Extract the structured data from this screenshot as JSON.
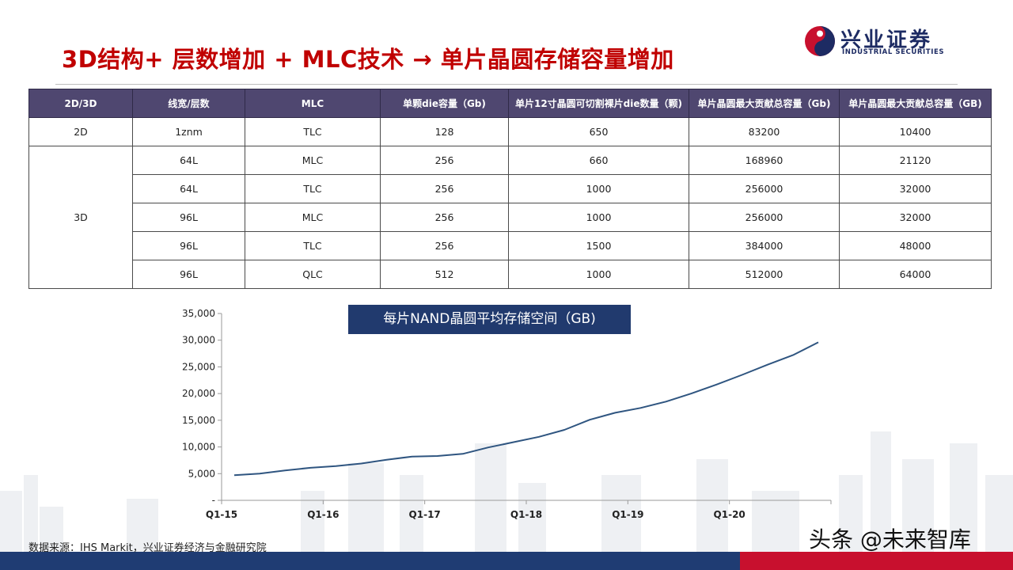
{
  "title": "3D结构+ 层数增加 + MLC技术 → 单片晶圆存储容量增加",
  "logo": {
    "name": "兴业证券",
    "english": "INDUSTRIAL SECURITIES"
  },
  "table": {
    "headers": [
      "2D/3D",
      "线宽/层数",
      "MLC",
      "单颗die容量（Gb)",
      "单片12寸晶圆可切割裸片die数量（颗)",
      "单片晶圆最大贡献总容量（Gb)",
      "单片晶圆最大贡献总容量（GB)"
    ],
    "row_2d": {
      "type": "2D",
      "cells": [
        "1znm",
        "TLC",
        "128",
        "650",
        "83200",
        "10400"
      ]
    },
    "group_3d": "3D",
    "rows_3d": [
      [
        "64L",
        "MLC",
        "256",
        "660",
        "168960",
        "21120"
      ],
      [
        "64L",
        "TLC",
        "256",
        "1000",
        "256000",
        "32000"
      ],
      [
        "96L",
        "MLC",
        "256",
        "1000",
        "256000",
        "32000"
      ],
      [
        "96L",
        "TLC",
        "256",
        "1500",
        "384000",
        "48000"
      ],
      [
        "96L",
        "QLC",
        "512",
        "1000",
        "512000",
        "64000"
      ]
    ]
  },
  "chart_data": {
    "type": "line",
    "title": "每片NAND晶圆平均存储空间（GB)",
    "x": [
      "Q1-15",
      "Q2-15",
      "Q3-15",
      "Q4-15",
      "Q1-16",
      "Q2-16",
      "Q3-16",
      "Q4-16",
      "Q1-17",
      "Q2-17",
      "Q3-17",
      "Q4-17",
      "Q1-18",
      "Q2-18",
      "Q3-18",
      "Q4-18",
      "Q1-19",
      "Q2-19",
      "Q3-19",
      "Q4-19",
      "Q1-20",
      "Q2-20",
      "Q3-20",
      "Q4-20"
    ],
    "x_tick_labels": [
      "Q1-15",
      "Q1-16",
      "Q1-17",
      "Q1-18",
      "Q1-19",
      "Q1-20"
    ],
    "values": [
      4700,
      5000,
      5600,
      6100,
      6400,
      6900,
      7600,
      8200,
      8300,
      8700,
      9900,
      10900,
      11900,
      13200,
      15100,
      16400,
      17300,
      18500,
      20000,
      21700,
      23500,
      25400,
      27200,
      29600
    ],
    "ylim": [
      0,
      35000
    ],
    "y_ticks": [
      {
        "value": 0,
        "label": "-"
      },
      {
        "value": 5000,
        "label": "5,000"
      },
      {
        "value": 10000,
        "label": "10,000"
      },
      {
        "value": 15000,
        "label": "15,000"
      },
      {
        "value": 20000,
        "label": "20,000"
      },
      {
        "value": 25000,
        "label": "25,000"
      },
      {
        "value": 30000,
        "label": "30,000"
      },
      {
        "value": 35000,
        "label": "35,000"
      }
    ],
    "line_color": "#2f5580",
    "grid": false
  },
  "source": "数据来源：IHS Markit，兴业证券经济与金融研究院",
  "watermark": "头条 @未来智库",
  "colors": {
    "title": "#c00000",
    "header_bg": "#4f4770",
    "chart_title_bg": "#213a6e",
    "bar_blue": "#1f3c73",
    "bar_red": "#c8102e"
  }
}
